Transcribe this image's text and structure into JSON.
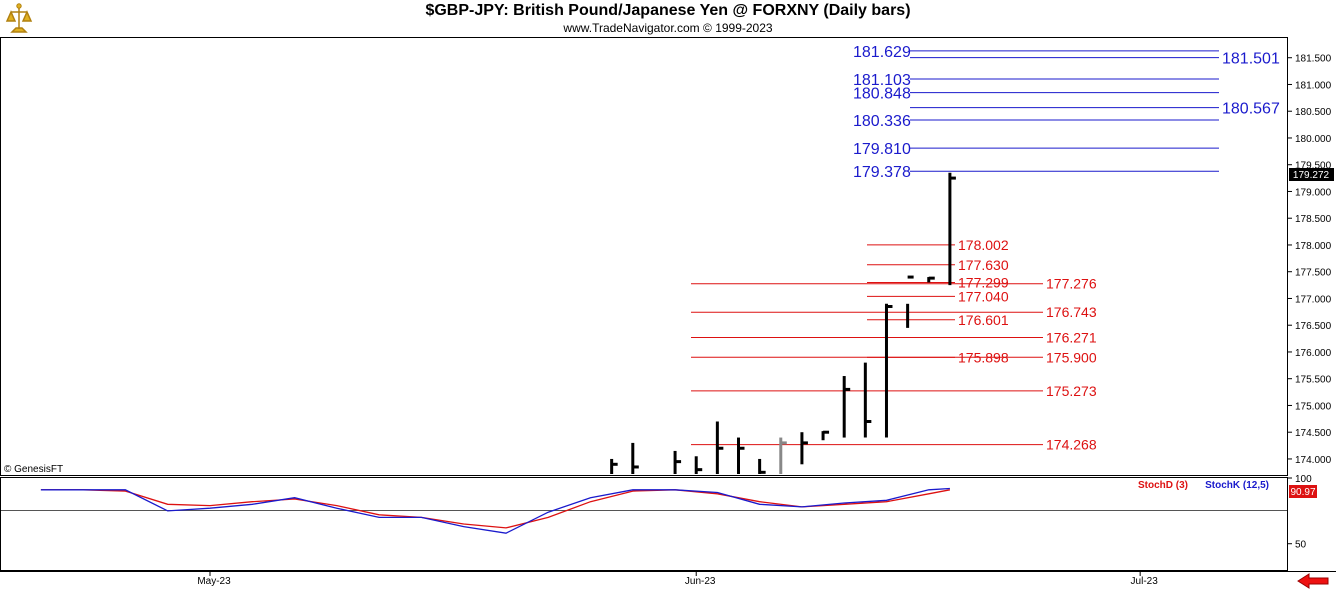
{
  "header": {
    "title": "$GBP-JPY:  British Pound/Japanese Yen @ FORXNY  (Daily bars)",
    "subtitle": "www.TradeNavigator.com © 1999-2023"
  },
  "watermark": "© GenesisFT",
  "colors": {
    "blue": "#1a1acc",
    "red": "#dd1111",
    "bars": "#000000",
    "gray_bar": "#888888"
  },
  "chart_data": [
    {
      "type": "ohlc-bar",
      "price_axis": {
        "ylim": [
          173.7,
          181.85
        ],
        "ticks": [
          "181.500",
          "181.000",
          "180.500",
          "180.000",
          "179.500",
          "179.000",
          "178.500",
          "178.000",
          "177.500",
          "177.000",
          "176.500",
          "176.000",
          "175.500",
          "175.000",
          "174.500",
          "174.000"
        ]
      },
      "x_ticks": [
        {
          "label": "May-23",
          "day": 0
        },
        {
          "label": "Jun-23",
          "day": 23
        },
        {
          "label": "Jul-23",
          "day": 44
        }
      ],
      "last_price": "179.272",
      "bars": [
        {
          "day": 19,
          "h": 174.0,
          "l": 173.7,
          "c": 173.9
        },
        {
          "day": 20,
          "h": 174.3,
          "l": 173.7,
          "c": 173.85
        },
        {
          "day": 22,
          "h": 174.15,
          "l": 173.7,
          "c": 173.95
        },
        {
          "day": 23,
          "h": 174.05,
          "l": 173.7,
          "c": 173.8
        },
        {
          "day": 24,
          "h": 174.7,
          "l": 173.7,
          "c": 174.2
        },
        {
          "day": 25,
          "h": 174.4,
          "l": 173.7,
          "c": 174.2
        },
        {
          "day": 26,
          "h": 174.0,
          "l": 173.7,
          "c": 173.75
        },
        {
          "day": 27,
          "h": 174.4,
          "l": 173.7,
          "c": 174.3,
          "gray": true
        },
        {
          "day": 28,
          "h": 174.5,
          "l": 173.9,
          "c": 174.3
        },
        {
          "day": 29,
          "h": 174.52,
          "l": 174.35,
          "c": 174.5
        },
        {
          "day": 30,
          "h": 175.55,
          "l": 174.4,
          "c": 175.3
        },
        {
          "day": 31,
          "h": 175.8,
          "l": 174.4,
          "c": 174.7
        },
        {
          "day": 32,
          "h": 176.9,
          "l": 174.4,
          "c": 176.85
        },
        {
          "day": 33,
          "h": 176.9,
          "l": 176.45,
          "c": 177.4
        },
        {
          "day": 34,
          "h": 177.4,
          "l": 177.3,
          "c": 177.38
        },
        {
          "day": 35,
          "h": 179.35,
          "l": 177.25,
          "c": 179.25
        }
      ],
      "levels_blue": [
        {
          "value": 181.629,
          "label": "181.629",
          "side": "left"
        },
        {
          "value": 181.501,
          "label": "181.501",
          "side": "right"
        },
        {
          "value": 181.103,
          "label": "181.103",
          "side": "left"
        },
        {
          "value": 180.848,
          "label": "180.848",
          "side": "left"
        },
        {
          "value": 180.567,
          "label": "180.567",
          "side": "right"
        },
        {
          "value": 180.336,
          "label": "180.336",
          "side": "left"
        },
        {
          "value": 179.81,
          "label": "179.810",
          "side": "left"
        },
        {
          "value": 179.378,
          "label": "179.378",
          "side": "left"
        }
      ],
      "levels_red_inner": [
        {
          "value": 178.002,
          "label": "178.002"
        },
        {
          "value": 177.63,
          "label": "177.630"
        },
        {
          "value": 177.299,
          "label": "177.299"
        },
        {
          "value": 177.04,
          "label": "177.040"
        },
        {
          "value": 176.601,
          "label": "176.601"
        },
        {
          "value": 175.898,
          "label": "175.898"
        }
      ],
      "levels_red_outer": [
        {
          "value": 177.276,
          "label": "177.276"
        },
        {
          "value": 176.743,
          "label": "176.743"
        },
        {
          "value": 176.271,
          "label": "176.271"
        },
        {
          "value": 175.9,
          "label": "175.900"
        },
        {
          "value": 175.273,
          "label": "175.273"
        },
        {
          "value": 174.268,
          "label": "174.268"
        }
      ]
    },
    {
      "type": "line",
      "ylim": [
        30,
        100
      ],
      "ticks": [
        "100",
        "50"
      ],
      "last_value": "90.97",
      "series": [
        {
          "name": "StochD (3)",
          "color": "#dd1111",
          "x": [
            -8,
            -6,
            -4,
            -2,
            0,
            2,
            4,
            6,
            8,
            10,
            12,
            14,
            16,
            18,
            20,
            22,
            24,
            26,
            28,
            30,
            32,
            34,
            35
          ],
          "y": [
            91,
            91,
            90,
            80,
            79,
            82,
            84,
            79,
            72,
            70,
            65,
            62,
            70,
            82,
            90,
            91,
            88,
            82,
            78,
            80,
            82,
            88,
            91
          ]
        },
        {
          "name": "StochK (12,5)",
          "color": "#1a1acc",
          "x": [
            -8,
            -6,
            -4,
            -2,
            0,
            2,
            4,
            6,
            8,
            10,
            12,
            14,
            16,
            18,
            20,
            22,
            24,
            26,
            28,
            30,
            32,
            34,
            35
          ],
          "y": [
            91,
            91,
            91,
            75,
            77,
            80,
            85,
            77,
            70,
            70,
            63,
            58,
            74,
            85,
            91,
            91,
            89,
            80,
            78,
            81,
            83,
            91,
            92
          ]
        }
      ]
    }
  ]
}
